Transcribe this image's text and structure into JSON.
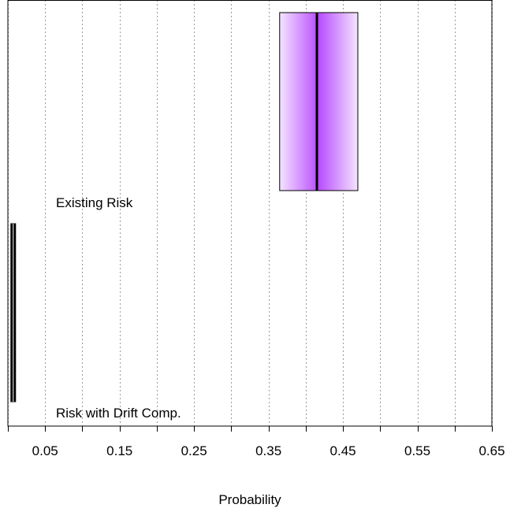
{
  "chart_data": {
    "type": "box",
    "orientation": "horizontal",
    "xlabel": "Probability",
    "xlim": [
      0.0,
      0.65
    ],
    "tick_values": [
      0.05,
      0.15,
      0.25,
      0.35,
      0.45,
      0.55,
      0.65
    ],
    "tick_labels": [
      "0.05",
      "0.15",
      "0.25",
      "0.35",
      "0.45",
      "0.55",
      "0.65"
    ],
    "minor_ticks": [
      0.0,
      0.1,
      0.2,
      0.3,
      0.4,
      0.5,
      0.6
    ],
    "grid": "vertical dotted",
    "series": [
      {
        "name": "Existing Risk",
        "q1": 0.365,
        "median": 0.415,
        "q3": 0.47,
        "fill_color": "#b84dff",
        "fill_light": "#f4e4ff"
      },
      {
        "name": "Risk with Drift Comp.",
        "q1": 0.004,
        "median": 0.006,
        "q3": 0.009,
        "fill_color": "#000000",
        "fill_light": "#000000"
      }
    ]
  }
}
